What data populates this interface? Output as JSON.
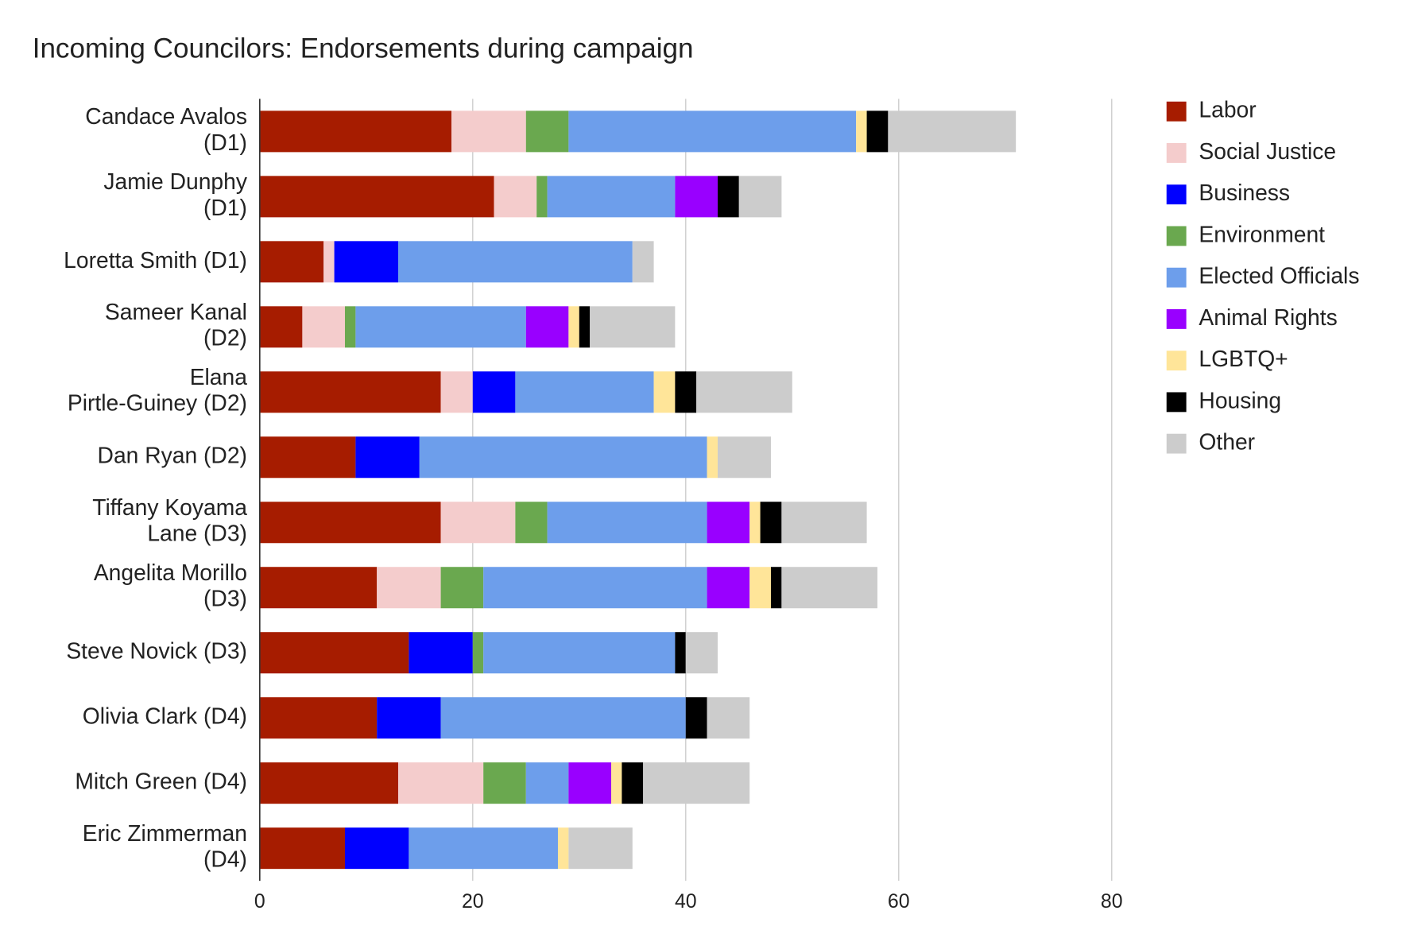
{
  "chart_data": {
    "type": "stacked_bar_horizontal",
    "title": "Incoming Councilors: Endorsements during campaign",
    "categories": [
      "Candace Avalos\n(D1)",
      "Jamie Dunphy\n(D1)",
      "Loretta Smith (D1)",
      "Sameer Kanal\n(D2)",
      "Elana\nPirtle-Guiney (D2)",
      "Dan Ryan (D2)",
      "Tiffany Koyama\nLane (D3)",
      "Angelita Morillo\n(D3)",
      "Steve Novick (D3)",
      "Olivia Clark (D4)",
      "Mitch Green (D4)",
      "Eric Zimmerman\n(D4)"
    ],
    "series": [
      {
        "name": "Labor",
        "color": "#a61c00",
        "values": [
          18,
          22,
          6,
          4,
          17,
          9,
          17,
          11,
          14,
          11,
          13,
          8
        ]
      },
      {
        "name": "Social Justice",
        "color": "#f4cccc",
        "values": [
          7,
          4,
          1,
          4,
          3,
          0,
          7,
          6,
          0,
          0,
          8,
          0
        ]
      },
      {
        "name": "Business",
        "color": "#0000ff",
        "values": [
          0,
          0,
          6,
          0,
          4,
          6,
          0,
          0,
          6,
          6,
          0,
          6
        ]
      },
      {
        "name": "Environment",
        "color": "#6aa84f",
        "values": [
          4,
          1,
          0,
          1,
          0,
          0,
          3,
          4,
          1,
          0,
          4,
          0
        ]
      },
      {
        "name": "Elected Officials",
        "color": "#6d9eeb",
        "values": [
          27,
          12,
          22,
          16,
          13,
          27,
          15,
          21,
          18,
          23,
          4,
          14
        ]
      },
      {
        "name": "Animal Rights",
        "color": "#9900ff",
        "values": [
          0,
          4,
          0,
          4,
          0,
          0,
          4,
          4,
          0,
          0,
          4,
          0
        ]
      },
      {
        "name": "LGBTQ+",
        "color": "#ffe599",
        "values": [
          1,
          0,
          0,
          1,
          2,
          1,
          1,
          2,
          0,
          0,
          1,
          1
        ]
      },
      {
        "name": "Housing",
        "color": "#000000",
        "values": [
          2,
          2,
          0,
          1,
          2,
          0,
          2,
          1,
          1,
          2,
          2,
          0
        ]
      },
      {
        "name": "Other",
        "color": "#cccccc",
        "values": [
          12,
          4,
          2,
          8,
          9,
          5,
          8,
          9,
          3,
          4,
          10,
          6
        ]
      }
    ],
    "xlim": [
      0,
      80
    ],
    "xticks": [
      0,
      20,
      40,
      60,
      80
    ],
    "grid": true,
    "legend": "right"
  }
}
